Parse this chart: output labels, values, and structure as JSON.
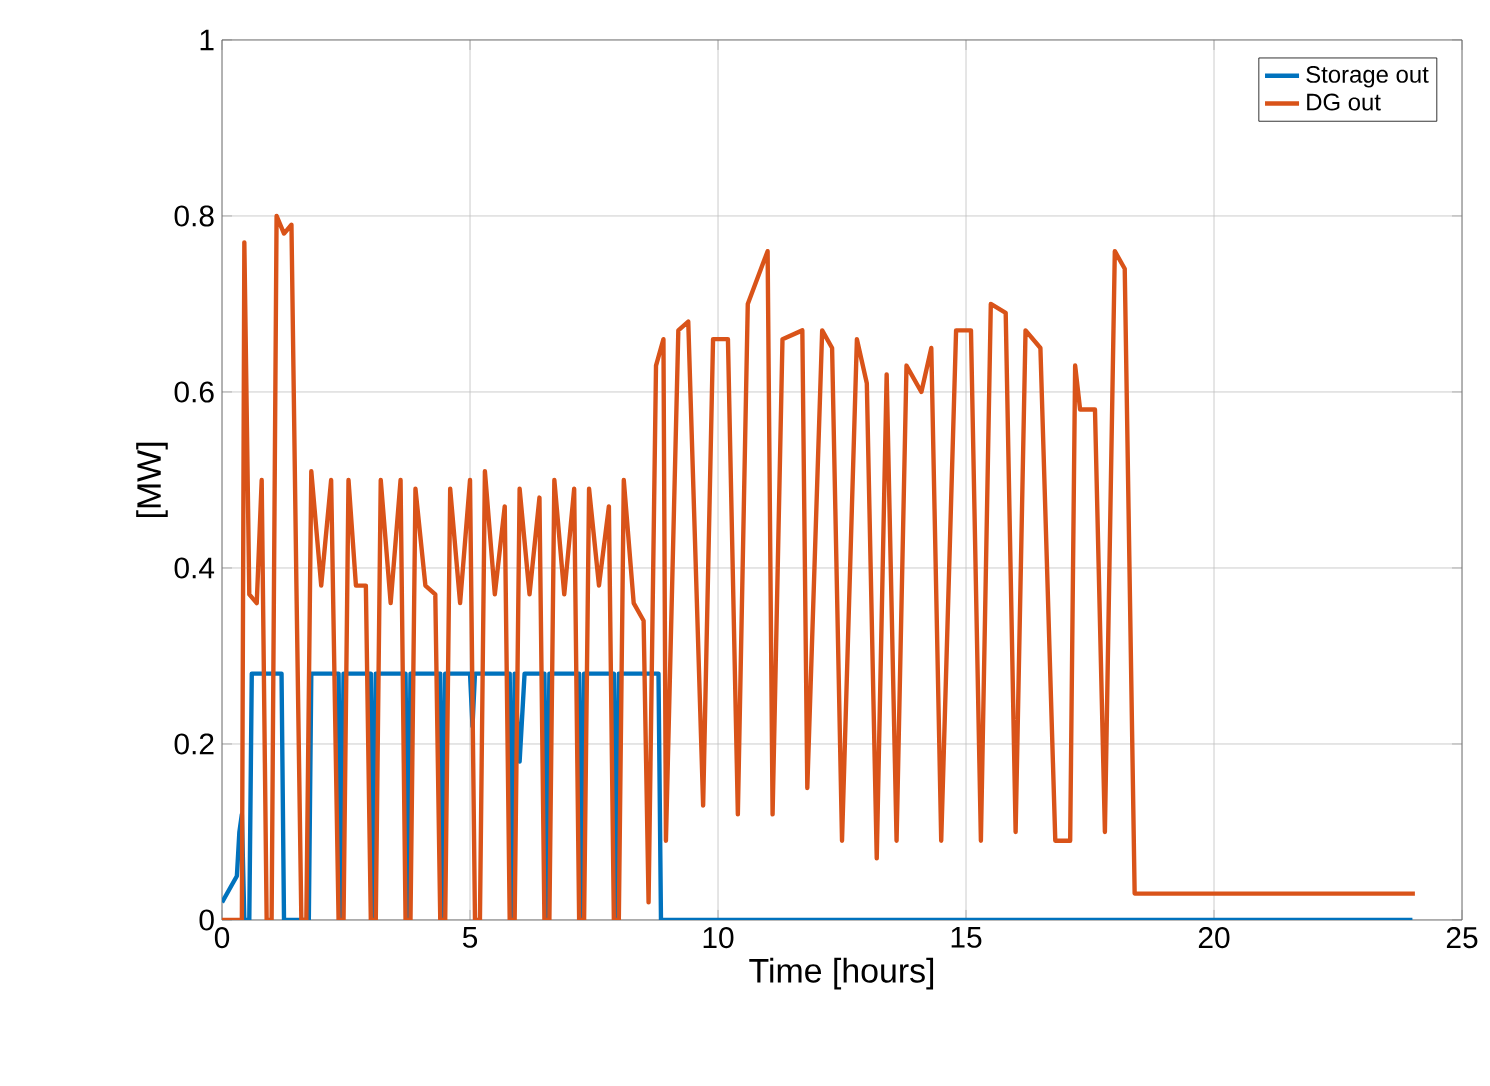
{
  "chart_data": {
    "type": "line",
    "xlabel": "Time [hours]",
    "ylabel": "[MW]",
    "xlim": [
      0,
      25
    ],
    "ylim": [
      0,
      1
    ],
    "xticks": [
      0,
      5,
      10,
      15,
      20,
      25
    ],
    "yticks": [
      0,
      0.2,
      0.4,
      0.6,
      0.8,
      1
    ],
    "grid": true,
    "legend": "top right",
    "marker": "none",
    "line_style": "solid",
    "series": [
      {
        "name": "Storage out",
        "color": "#0072bd",
        "x": [
          0,
          0.1,
          0.2,
          0.3,
          0.35,
          0.4,
          0.45,
          0.55,
          0.6,
          1.2,
          1.25,
          1.75,
          1.8,
          2.35,
          2.4,
          2.45,
          3.0,
          3.05,
          3.1,
          3.7,
          3.75,
          3.8,
          4.4,
          4.45,
          4.5,
          5.0,
          5.05,
          5.1,
          5.2,
          5.3,
          5.8,
          5.85,
          5.9,
          6.0,
          6.1,
          6.5,
          6.55,
          6.6,
          7.2,
          7.25,
          7.3,
          7.9,
          7.95,
          8.0,
          8.8,
          8.85,
          24
        ],
        "values": [
          0.02,
          0.03,
          0.04,
          0.05,
          0.1,
          0.12,
          0,
          0,
          0.28,
          0.28,
          0,
          0,
          0.28,
          0.28,
          0,
          0.28,
          0.28,
          0,
          0.28,
          0.28,
          0,
          0.28,
          0.28,
          0,
          0.28,
          0.28,
          0.22,
          0.28,
          0.28,
          0.28,
          0.28,
          0,
          0.28,
          0.18,
          0.28,
          0.28,
          0,
          0.28,
          0.28,
          0,
          0.28,
          0.28,
          0,
          0.28,
          0.28,
          0,
          0
        ]
      },
      {
        "name": "DG out",
        "color": "#d95319",
        "x": [
          0,
          0.4,
          0.45,
          0.55,
          0.7,
          0.8,
          0.9,
          1.0,
          1.1,
          1.25,
          1.4,
          1.5,
          1.6,
          1.7,
          1.8,
          2.0,
          2.2,
          2.35,
          2.45,
          2.55,
          2.7,
          2.9,
          3.0,
          3.1,
          3.2,
          3.4,
          3.6,
          3.7,
          3.8,
          3.9,
          4.1,
          4.3,
          4.4,
          4.5,
          4.6,
          4.8,
          5.0,
          5.1,
          5.2,
          5.3,
          5.5,
          5.7,
          5.8,
          5.9,
          6.0,
          6.2,
          6.4,
          6.5,
          6.6,
          6.7,
          6.9,
          7.1,
          7.2,
          7.3,
          7.4,
          7.6,
          7.8,
          7.9,
          8.0,
          8.1,
          8.3,
          8.5,
          8.6,
          8.75,
          8.9,
          8.95,
          9.2,
          9.4,
          9.7,
          9.9,
          10.2,
          10.4,
          10.6,
          11.0,
          11.1,
          11.3,
          11.7,
          11.8,
          12.1,
          12.3,
          12.5,
          12.8,
          13.0,
          13.2,
          13.4,
          13.6,
          13.8,
          14.1,
          14.3,
          14.5,
          14.8,
          15.1,
          15.3,
          15.5,
          15.8,
          16.0,
          16.2,
          16.5,
          16.8,
          17.1,
          17.2,
          17.3,
          17.6,
          17.8,
          18.0,
          18.2,
          18.4,
          18.6,
          20,
          22,
          23.8,
          24,
          24.05
        ],
        "values": [
          0,
          0,
          0.77,
          0.37,
          0.36,
          0.5,
          0,
          0,
          0.8,
          0.78,
          0.79,
          0.38,
          0,
          0,
          0.51,
          0.38,
          0.5,
          0,
          0,
          0.5,
          0.38,
          0.38,
          0,
          0,
          0.5,
          0.36,
          0.5,
          0,
          0,
          0.49,
          0.38,
          0.37,
          0,
          0,
          0.49,
          0.36,
          0.5,
          0,
          0,
          0.51,
          0.37,
          0.47,
          0,
          0,
          0.49,
          0.37,
          0.48,
          0,
          0,
          0.5,
          0.37,
          0.49,
          0,
          0,
          0.49,
          0.38,
          0.47,
          0,
          0,
          0.5,
          0.36,
          0.34,
          0.02,
          0.63,
          0.66,
          0.09,
          0.67,
          0.68,
          0.13,
          0.66,
          0.66,
          0.12,
          0.7,
          0.76,
          0.12,
          0.66,
          0.67,
          0.15,
          0.67,
          0.65,
          0.09,
          0.66,
          0.61,
          0.07,
          0.62,
          0.09,
          0.63,
          0.6,
          0.65,
          0.09,
          0.67,
          0.67,
          0.09,
          0.7,
          0.69,
          0.1,
          0.67,
          0.65,
          0.09,
          0.09,
          0.63,
          0.58,
          0.58,
          0.1,
          0.76,
          0.74,
          0.03,
          0.03,
          0.03,
          0.03,
          0.03,
          0.03,
          0.03
        ]
      }
    ]
  }
}
